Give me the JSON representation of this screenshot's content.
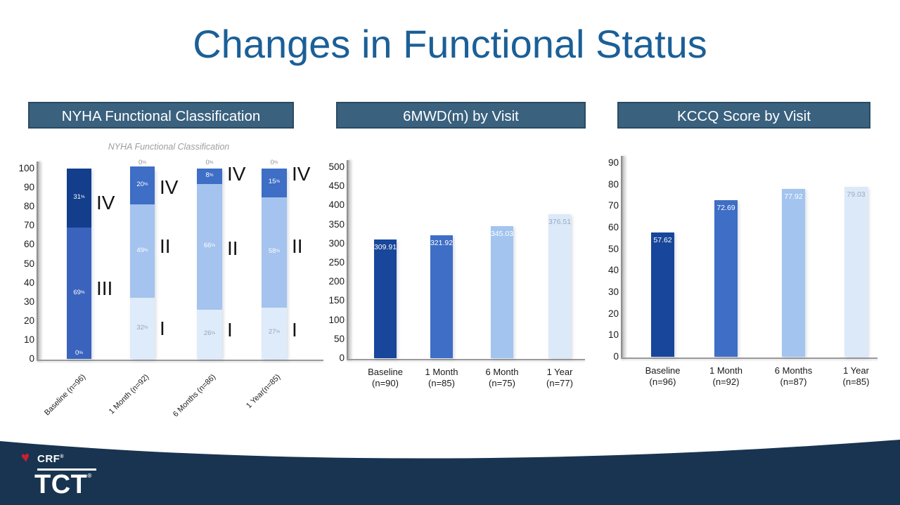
{
  "title": "Changes in Functional Status",
  "panels": [
    {
      "header": "NYHA Functional Classification"
    },
    {
      "header": "6MWD(m) by Visit"
    },
    {
      "header": "KCCQ Score by Visit"
    }
  ],
  "colors": {
    "title_text": "#1B5F97",
    "panel_header_bg": "#3A617E",
    "panel_header_border": "#2B4A63",
    "footer_navy": "#183450",
    "crf_heart_red": "#C8202F",
    "bar_palette_dark_to_light": [
      "#123E8C",
      "#3E6EC5",
      "#A4C3EE",
      "#DEEBFA"
    ]
  },
  "footer": {
    "crf_label": "CRF",
    "tct_label": "TCT",
    "registered_mark": "®"
  },
  "chart_data": [
    {
      "type": "bar",
      "subtype": "stacked",
      "title": "NYHA Functional Classification",
      "ylim": [
        0,
        100
      ],
      "yticks": [
        0,
        10,
        20,
        30,
        40,
        50,
        60,
        70,
        80,
        90,
        100
      ],
      "grid": false,
      "legend": "none",
      "categories": [
        "Baseline (n=96)",
        "1 Month (n=92)",
        "6 Months (n=86)",
        "1 Year(n=85)"
      ],
      "bars": [
        {
          "category": "Baseline (n=96)",
          "segments": [
            {
              "name": "III",
              "value": 69,
              "color": "#3A63BE",
              "label": "69",
              "label_color": "#FFFFFF"
            },
            {
              "name": "IV",
              "value": 31,
              "color": "#123E8C",
              "label": "31",
              "label_color": "#FFFFFF"
            }
          ],
          "zero_label": {
            "text": "0",
            "position": "bottom",
            "color": "#FFFFFF"
          },
          "annotations": [
            {
              "text": "IV",
              "level": 82
            },
            {
              "text": "III",
              "level": 37
            }
          ]
        },
        {
          "category": "1 Month (n=92)",
          "segments": [
            {
              "name": "I",
              "value": 32,
              "color": "#DEEBFA",
              "label": "32",
              "label_color": "#96A5BD"
            },
            {
              "name": "II",
              "value": 49,
              "color": "#A4C3EE",
              "label": "49",
              "label_color": "#FFFFFF"
            },
            {
              "name": "IV",
              "value": 20,
              "color": "#3E6EC5",
              "label": "20",
              "label_color": "#FFFFFF"
            }
          ],
          "zero_label": {
            "text": "0",
            "position": "above",
            "color": "#8E8E8E"
          },
          "annotations": [
            {
              "text": "IV",
              "level": 90
            },
            {
              "text": "II",
              "level": 59
            },
            {
              "text": "I",
              "level": 16
            }
          ]
        },
        {
          "category": "6 Months (n=86)",
          "segments": [
            {
              "name": "I",
              "value": 26,
              "color": "#DEEBFA",
              "label": "26",
              "label_color": "#96A5BD"
            },
            {
              "name": "II",
              "value": 66,
              "color": "#A4C3EE",
              "label": "66",
              "label_color": "#FFFFFF"
            },
            {
              "name": "IV",
              "value": 8,
              "color": "#3E6EC5",
              "label": "8",
              "label_color": "#FFFFFF"
            }
          ],
          "zero_label": {
            "text": "0",
            "position": "above",
            "color": "#8E8E8E"
          },
          "annotations": [
            {
              "text": "IV",
              "level": 97
            },
            {
              "text": "II",
              "level": 58
            },
            {
              "text": "I",
              "level": 15
            }
          ]
        },
        {
          "category": "1 Year(n=85)",
          "segments": [
            {
              "name": "I",
              "value": 27,
              "color": "#DEEBFA",
              "label": "27",
              "label_color": "#96A5BD"
            },
            {
              "name": "II",
              "value": 58,
              "color": "#A4C3EE",
              "label": "58",
              "label_color": "#FFFFFF"
            },
            {
              "name": "IV",
              "value": 15,
              "color": "#3E6EC5",
              "label": "15",
              "label_color": "#FFFFFF"
            }
          ],
          "zero_label": {
            "text": "0",
            "position": "above",
            "color": "#8E8E8E"
          },
          "annotations": [
            {
              "text": "IV",
              "level": 97
            },
            {
              "text": "II",
              "level": 59
            },
            {
              "text": "I",
              "level": 15
            }
          ]
        }
      ]
    },
    {
      "type": "bar",
      "title": "6MWD(m) by Visit",
      "ylim": [
        0,
        500
      ],
      "yticks": [
        0,
        50,
        100,
        150,
        200,
        250,
        300,
        350,
        400,
        450,
        500
      ],
      "grid": false,
      "legend": "none",
      "categories": [
        {
          "name": "Baseline",
          "n": "(n=90)"
        },
        {
          "name": "1 Month",
          "n": "(n=85)"
        },
        {
          "name": "6 Month",
          "n": "(n=75)"
        },
        {
          "name": "1 Year",
          "n": "(n=77)"
        }
      ],
      "values": [
        309.91,
        321.92,
        345.03,
        376.51
      ],
      "value_labels": [
        "309.91",
        "321.92",
        "345.03",
        "376.51"
      ],
      "bar_colors": [
        "#17469A",
        "#3E6EC5",
        "#A2C4EF",
        "#DCE9F8"
      ],
      "value_label_colors": [
        "#FFFFFF",
        "#FFFFFF",
        "#FFFFFF",
        "#9AA9C4"
      ]
    },
    {
      "type": "bar",
      "title": "KCCQ Score by Visit",
      "ylim": [
        0,
        90
      ],
      "yticks": [
        0,
        10,
        20,
        30,
        40,
        50,
        60,
        70,
        80,
        90
      ],
      "grid": false,
      "legend": "none",
      "categories": [
        {
          "name": "Baseline",
          "n": "(n=96)"
        },
        {
          "name": "1 Month",
          "n": "(n=92)"
        },
        {
          "name": "6 Months",
          "n": "(n=87)"
        },
        {
          "name": "1 Year",
          "n": "(n=85)"
        }
      ],
      "values": [
        57.62,
        72.69,
        77.92,
        79.03
      ],
      "value_labels": [
        "57.62",
        "72.69",
        "77.92",
        "79.03"
      ],
      "bar_colors": [
        "#17469A",
        "#3E6EC5",
        "#A2C4EF",
        "#DCE9F8"
      ],
      "value_label_colors": [
        "#FFFFFF",
        "#FFFFFF",
        "#FFFFFF",
        "#9AA9C4"
      ]
    }
  ]
}
